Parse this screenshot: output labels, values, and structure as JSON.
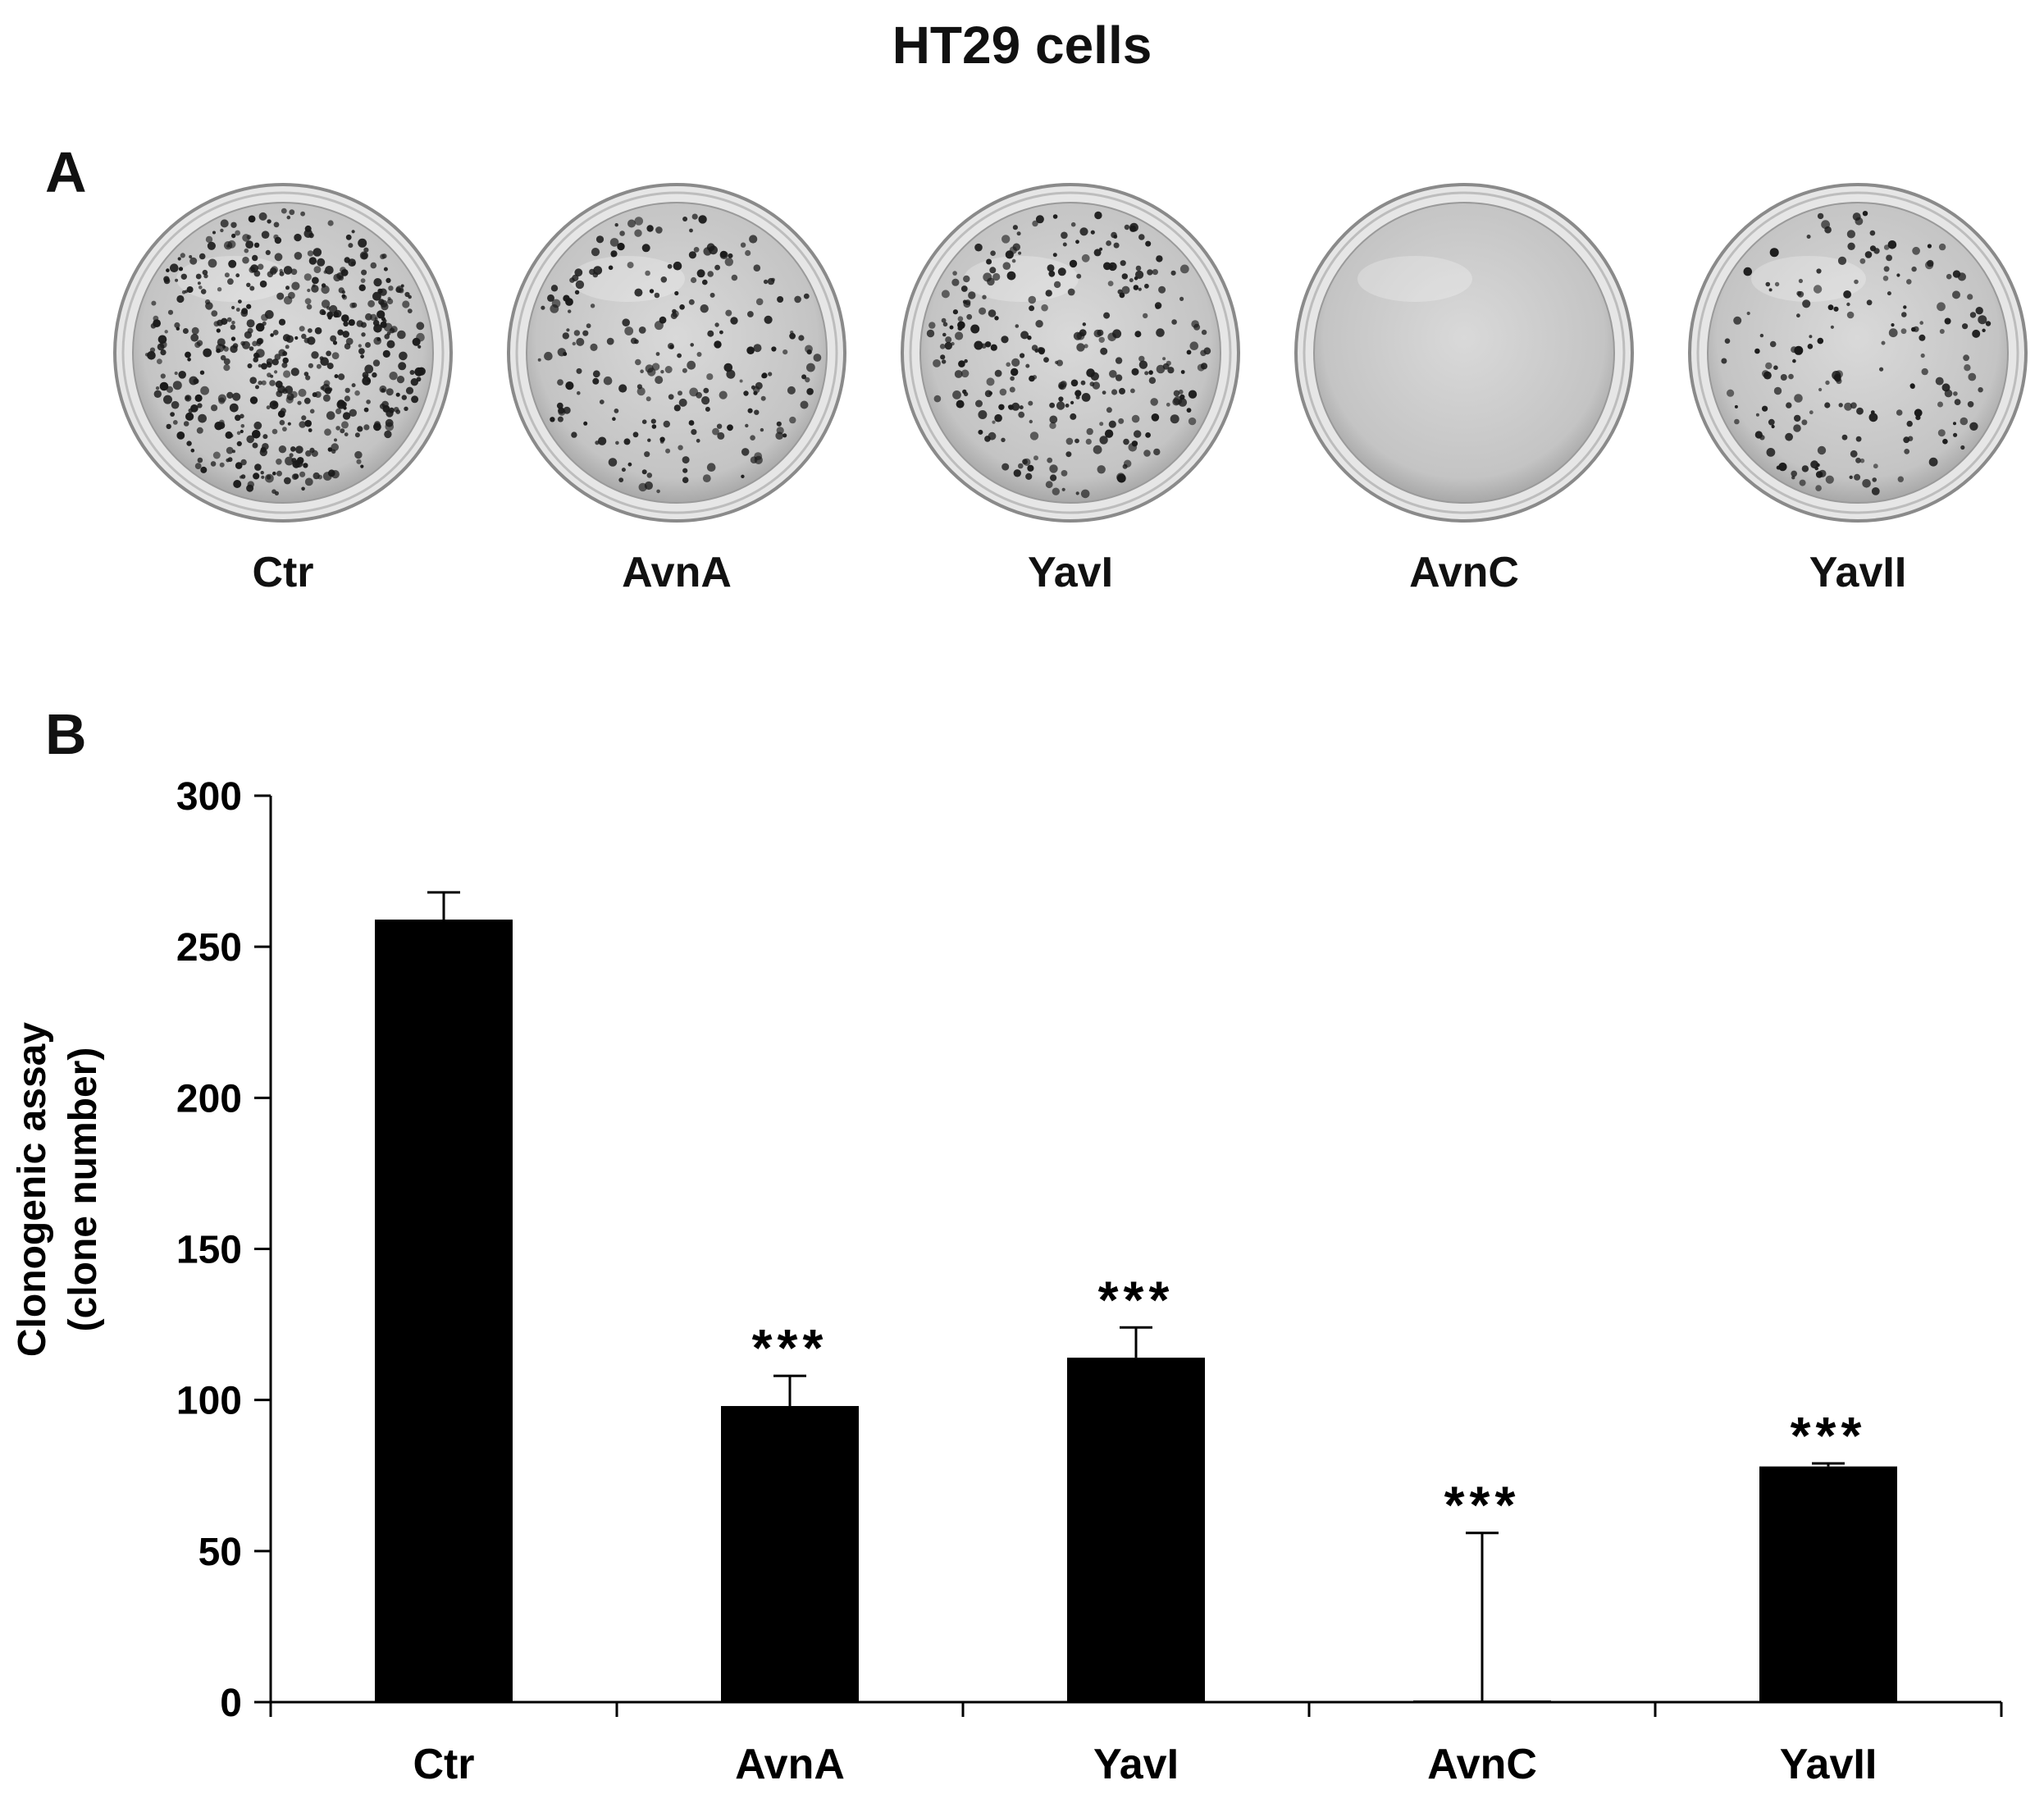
{
  "figure": {
    "title": "HT29 cells",
    "panel_a_label": "A",
    "panel_b_label": "B"
  },
  "panel_a": {
    "dishes": [
      {
        "label": "Ctr",
        "colony_density": 1.0
      },
      {
        "label": "AvnA",
        "colony_density": 0.45
      },
      {
        "label": "YavI",
        "colony_density": 0.55
      },
      {
        "label": "AvnC",
        "colony_density": 0.0
      },
      {
        "label": "YavII",
        "colony_density": 0.35
      }
    ]
  },
  "chart_data": {
    "type": "bar",
    "title": "",
    "ylabel": "Clonogenic assay (clone number)",
    "ylabel_lines": [
      "Clonogenic assay",
      "(clone number)"
    ],
    "xlabel": "",
    "categories": [
      "Ctr",
      "AvnA",
      "YavI",
      "AvnC",
      "YavII"
    ],
    "values": [
      259,
      98,
      114,
      0,
      78
    ],
    "errors": [
      9,
      10,
      10,
      56,
      1
    ],
    "annotations": [
      "",
      "***",
      "***",
      "***",
      "***"
    ],
    "ylim": [
      0,
      300
    ],
    "yticks": [
      0,
      50,
      100,
      150,
      200,
      250,
      300
    ],
    "grid": false,
    "bar_color": "#000000"
  }
}
